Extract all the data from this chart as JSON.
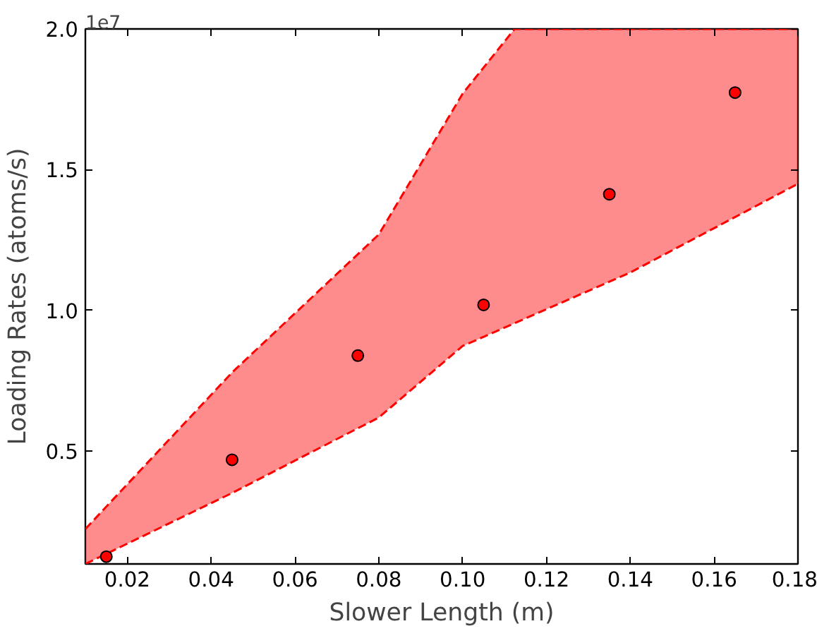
{
  "chart_data": {
    "type": "scatter",
    "xlabel": "Slower Length (m)",
    "ylabel": "Loading Rates (atoms/s)",
    "annotations": [
      "1e7"
    ],
    "xlim": [
      0.01,
      0.18
    ],
    "xticks": [
      {
        "value": 0.02,
        "label": "0.02"
      },
      {
        "value": 0.04,
        "label": "0.04"
      },
      {
        "value": 0.06,
        "label": "0.06"
      },
      {
        "value": 0.08,
        "label": "0.08"
      },
      {
        "value": 0.1,
        "label": "0.10"
      },
      {
        "value": 0.12,
        "label": "0.12"
      },
      {
        "value": 0.14,
        "label": "0.14"
      },
      {
        "value": 0.16,
        "label": "0.16"
      },
      {
        "value": 0.18,
        "label": "0.18"
      }
    ],
    "ylim": [
      0.1,
      2.0
    ],
    "yticks": [
      {
        "value": 0.5,
        "label": "0.5"
      },
      {
        "value": 1.0,
        "label": "1.0"
      },
      {
        "value": 1.5,
        "label": "1.5"
      },
      {
        "value": 2.0,
        "label": "2.0"
      }
    ],
    "grid": false,
    "series": [
      {
        "type": "line",
        "color": "#ff0000",
        "line_style": "dashed",
        "x": [
          0.01,
          0.045,
          0.08,
          0.1,
          0.1124,
          0.14,
          0.18
        ],
        "values": [
          0.224,
          0.78,
          1.27,
          1.77,
          2.0,
          2.0,
          2.0
        ],
        "lower": [
          0.1,
          0.352,
          0.62,
          0.874,
          0.955,
          1.135,
          1.45
        ],
        "upper": [
          0.224,
          0.78,
          1.27,
          1.77,
          2.0,
          2.0,
          2.0
        ]
      },
      {
        "type": "line",
        "color": "#ff0000",
        "line_style": "dashed",
        "x": [
          0.01,
          0.045,
          0.08,
          0.1,
          0.1124,
          0.14,
          0.18
        ],
        "values": [
          0.1,
          0.352,
          0.62,
          0.874,
          0.955,
          1.135,
          1.45
        ]
      },
      {
        "color": "#ff0000",
        "marker": "circle",
        "x": [
          0.015,
          0.045,
          0.075,
          0.105,
          0.135,
          0.165
        ],
        "values": [
          0.126,
          0.47,
          0.84,
          1.02,
          1.413,
          1.774
        ]
      }
    ]
  }
}
